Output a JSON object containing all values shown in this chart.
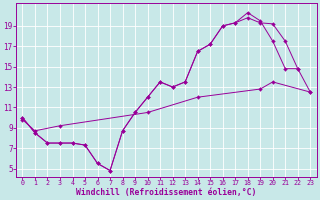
{
  "bg_color": "#c8e8e8",
  "line_color": "#990099",
  "grid_color": "#ffffff",
  "xlabel": "Windchill (Refroidissement éolien,°C)",
  "xlabel_fontsize": 5.8,
  "tick_fontsize": 5.5,
  "xlim": [
    -0.5,
    23.5
  ],
  "ylim": [
    4.2,
    21.2
  ],
  "yticks": [
    5,
    7,
    9,
    11,
    13,
    15,
    17,
    19
  ],
  "xticks": [
    0,
    1,
    2,
    3,
    4,
    5,
    6,
    7,
    8,
    9,
    10,
    11,
    12,
    13,
    14,
    15,
    16,
    17,
    18,
    19,
    20,
    21,
    22,
    23
  ],
  "curve1_x": [
    0,
    1,
    2,
    3,
    4,
    5,
    6,
    7,
    8,
    9,
    10,
    11,
    12,
    13,
    14,
    15,
    16,
    17,
    18,
    19,
    20,
    21,
    22
  ],
  "curve1_y": [
    10,
    8.5,
    7.5,
    7.5,
    7.5,
    7.3,
    5.5,
    4.8,
    8.7,
    10.5,
    12.0,
    13.5,
    13.0,
    13.5,
    16.5,
    17.2,
    19.0,
    19.3,
    20.3,
    19.5,
    17.5,
    14.8,
    14.8
  ],
  "curve2_x": [
    0,
    1,
    2,
    3,
    4,
    5,
    6,
    7,
    8,
    9,
    10,
    11,
    12,
    13,
    14,
    15,
    16,
    17,
    18,
    19,
    20,
    21,
    22,
    23
  ],
  "curve2_y": [
    10,
    8.5,
    7.5,
    7.5,
    7.5,
    7.3,
    5.5,
    4.8,
    8.7,
    10.5,
    12.0,
    13.5,
    13.0,
    13.5,
    16.5,
    17.2,
    19.0,
    19.3,
    19.8,
    19.3,
    19.2,
    17.5,
    14.8,
    12.5
  ],
  "curve3_x": [
    0,
    1,
    3,
    10,
    14,
    19,
    20,
    23
  ],
  "curve3_y": [
    9.8,
    8.7,
    9.2,
    10.5,
    12.0,
    12.8,
    13.5,
    12.5
  ]
}
